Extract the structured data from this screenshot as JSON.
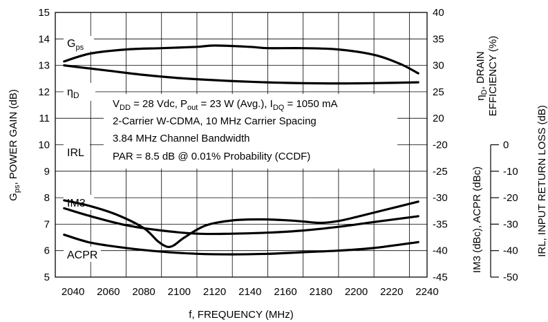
{
  "chart_data": {
    "type": "line",
    "xlabel": "f, FREQUENCY (MHz)",
    "left_axis": {
      "label_main": "G",
      "label_sub": "ps",
      "label_rest": ",  POWER GAIN (dB)",
      "ylim": [
        5,
        15
      ],
      "ticks": [
        "5",
        "6",
        "7",
        "8",
        "9",
        "10",
        "11",
        "12",
        "13",
        "14",
        "15"
      ]
    },
    "right_axis_upper": {
      "label_line1_sym": "η",
      "label_line1_sub": "D",
      "label_line1_rest": ", DRAIN",
      "label_line2": "EFFICIENCY (%)",
      "ylim": [
        -45,
        40
      ],
      "ticks": [
        "-45",
        "-40",
        "-35",
        "-30",
        "-25",
        "-20",
        "20",
        "25",
        "30",
        "35",
        "40"
      ]
    },
    "right_axis_lower": {
      "label": "IM3 (dBc),  ACPR (dBc)"
    },
    "right_axis_outer": {
      "label": "IRL,  INPUT RETURN LOSS (dB)",
      "ylim": [
        -50,
        0
      ],
      "ticks": [
        "0",
        "-10",
        "-20",
        "-30",
        "-40",
        "-50"
      ]
    },
    "x": {
      "xlim": [
        2030,
        2240
      ],
      "ticks": [
        "2040",
        "2060",
        "2080",
        "2100",
        "2120",
        "2140",
        "2160",
        "2180",
        "2200",
        "2220",
        "2240"
      ]
    },
    "annotation": {
      "line1": [
        "V",
        "DD",
        " = 28 Vdc, P",
        "out",
        " = 23 W (Avg.), I",
        "DQ",
        " = 1050 mA"
      ],
      "line2": "2-Carrier W-CDMA, 10 MHz Carrier Spacing",
      "line3": "3.84 MHz Channel Bandwidth",
      "line4": "PAR = 8.5 dB @ 0.01% Probability (CCDF)"
    },
    "curve_labels": {
      "gps_main": "G",
      "gps_sub": "ps",
      "eta_main": "η",
      "eta_sub": "D",
      "irl": "IRL",
      "im3": "IM3",
      "acpr": "ACPR"
    },
    "series": [
      {
        "name": "Gps",
        "axis": "gain_db",
        "x": [
          2035,
          2050,
          2070,
          2090,
          2110,
          2120,
          2140,
          2150,
          2170,
          2190,
          2210,
          2225,
          2235
        ],
        "y": [
          13.15,
          13.45,
          13.6,
          13.65,
          13.7,
          13.75,
          13.7,
          13.65,
          13.65,
          13.6,
          13.4,
          13.05,
          12.7
        ]
      },
      {
        "name": "ηD",
        "axis": "efficiency_pct",
        "x": [
          2035,
          2060,
          2080,
          2100,
          2120,
          2140,
          2160,
          2180,
          2200,
          2220,
          2235
        ],
        "y": [
          30.0,
          29.0,
          28.2,
          27.6,
          27.2,
          26.9,
          26.7,
          26.6,
          26.6,
          26.7,
          26.8
        ]
      },
      {
        "name": "IRL",
        "axis": "irl_db",
        "x": [
          2035,
          2050,
          2065,
          2080,
          2088,
          2093,
          2097,
          2103,
          2115,
          2130,
          2145,
          2160,
          2170,
          2180,
          2190,
          2200,
          2215,
          2235
        ],
        "y": [
          -21.0,
          -23.2,
          -26.5,
          -31.5,
          -36.5,
          -38.5,
          -38.0,
          -35.0,
          -30.5,
          -28.6,
          -28.2,
          -28.5,
          -29.0,
          -29.5,
          -28.8,
          -27.3,
          -24.8,
          -21.5
        ]
      },
      {
        "name": "IM3",
        "axis": "dbc",
        "x": [
          2035,
          2050,
          2070,
          2090,
          2110,
          2130,
          2150,
          2170,
          2190,
          2210,
          2235
        ],
        "y": [
          -32.0,
          -33.5,
          -35.2,
          -36.2,
          -36.8,
          -36.8,
          -36.6,
          -36.2,
          -35.5,
          -34.6,
          -33.5
        ]
      },
      {
        "name": "ACPR",
        "axis": "dbc",
        "x": [
          2035,
          2050,
          2070,
          2090,
          2110,
          2130,
          2150,
          2170,
          2190,
          2210,
          2235
        ],
        "y": [
          -37.0,
          -38.5,
          -39.5,
          -40.2,
          -40.6,
          -40.7,
          -40.6,
          -40.3,
          -40.0,
          -39.5,
          -38.4
        ]
      }
    ]
  }
}
